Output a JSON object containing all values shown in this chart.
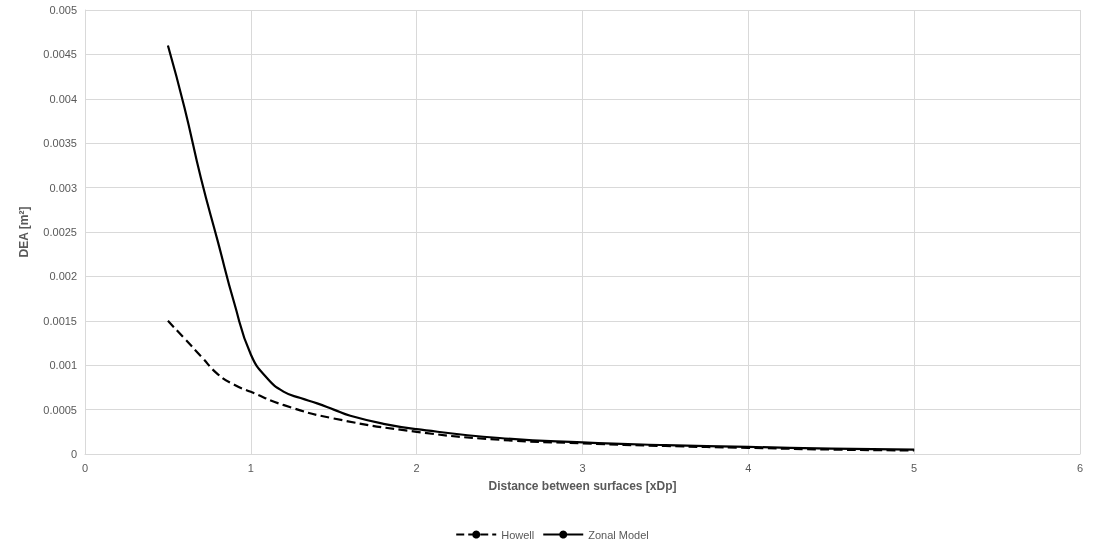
{
  "chart_data": {
    "type": "line",
    "xlabel": "Distance between surfaces [xDp]",
    "ylabel": "DEA [m²]",
    "xlim": [
      0,
      6
    ],
    "xticks": [
      0,
      1,
      2,
      3,
      4,
      5,
      6
    ],
    "ylim": [
      0,
      0.005
    ],
    "yticks": [
      0,
      0.0005,
      0.001,
      0.0015,
      0.002,
      0.0025,
      0.003,
      0.0035,
      0.004,
      0.0045,
      0.005
    ],
    "grid": true,
    "legend": "bottom",
    "marker": "none",
    "series": [
      {
        "name": "Howell",
        "color": "#000000",
        "line_style": "dashed",
        "x": [
          0.5,
          0.6,
          0.7,
          0.8,
          0.9,
          1.0,
          1.2,
          1.5,
          2.0,
          2.5,
          3.0,
          3.5,
          4.0,
          4.5,
          5.0
        ],
        "values": [
          0.0015,
          0.0013,
          0.0011,
          0.0009,
          0.00078,
          0.0007,
          0.00055,
          0.0004,
          0.00025,
          0.00016,
          0.00012,
          9e-05,
          7e-05,
          5e-05,
          4e-05
        ]
      },
      {
        "name": "Zonal Model",
        "color": "#000000",
        "line_style": "solid",
        "x": [
          0.5,
          0.6,
          0.7,
          0.8,
          0.9,
          1.0,
          1.1,
          1.2,
          1.3,
          1.4,
          1.5,
          1.6,
          1.8,
          2.0,
          2.5,
          3.0,
          3.5,
          4.0,
          4.5,
          5.0
        ],
        "values": [
          0.0046,
          0.0039,
          0.0031,
          0.0024,
          0.0017,
          0.00112,
          0.00085,
          0.0007,
          0.00063,
          0.00057,
          0.0005,
          0.00043,
          0.00034,
          0.00028,
          0.00018,
          0.00013,
          0.0001,
          8e-05,
          6e-05,
          5e-05
        ]
      }
    ]
  }
}
